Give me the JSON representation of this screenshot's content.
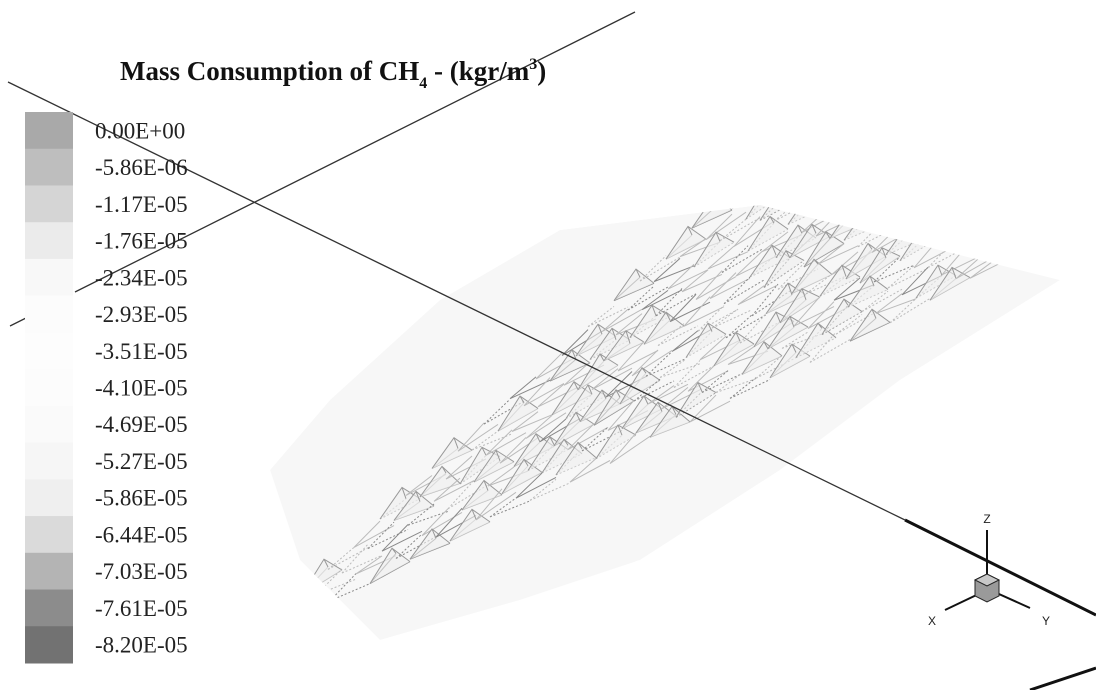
{
  "title": {
    "text": "Mass Consumption of CH",
    "sub": "4",
    "mid": " - (kgr/m",
    "sup": "3",
    "end": ")"
  },
  "legend": {
    "levels": [
      {
        "label": "0.00E+00",
        "color": "#a9a9a9"
      },
      {
        "label": "-5.86E-06",
        "color": "#bebebe"
      },
      {
        "label": "-1.17E-05",
        "color": "#d5d5d5"
      },
      {
        "label": "-1.76E-05",
        "color": "#ebebeb"
      },
      {
        "label": "-2.34E-05",
        "color": "#f8f8f8"
      },
      {
        "label": "-2.93E-05",
        "color": "#fcfcfc"
      },
      {
        "label": "-3.51E-05",
        "color": "#fdfdfd"
      },
      {
        "label": "-4.10E-05",
        "color": "#fcfcfc"
      },
      {
        "label": "-4.69E-05",
        "color": "#fafafa"
      },
      {
        "label": "-5.27E-05",
        "color": "#f6f6f6"
      },
      {
        "label": "-5.86E-05",
        "color": "#efefef"
      },
      {
        "label": "-6.44E-05",
        "color": "#dadada"
      },
      {
        "label": "-7.03E-05",
        "color": "#b4b4b4"
      },
      {
        "label": "-7.61E-05",
        "color": "#8c8c8c"
      },
      {
        "label": "-8.20E-05",
        "color": "#727272"
      }
    ]
  },
  "axes": {
    "x": "X",
    "y": "Y",
    "z": "Z"
  }
}
